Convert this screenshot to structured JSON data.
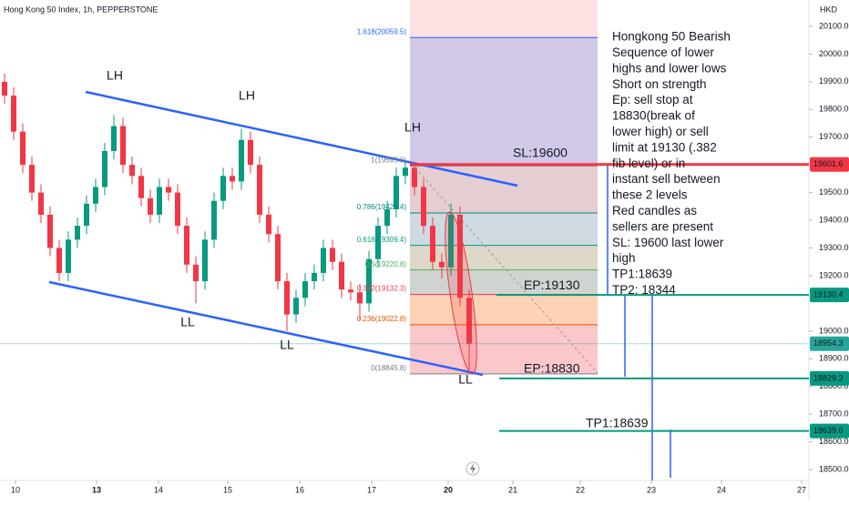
{
  "chart_data": {
    "type": "candlestick",
    "title": "Hong Kong 50 Index, 1h, PEPPERSTONE",
    "currency": "HKD",
    "up_color": "#089981",
    "down_color": "#f23645",
    "x": [
      1.25,
      3.75,
      6.25,
      8.75,
      11.25,
      13.75,
      16.25,
      18.75,
      21.25,
      23.75,
      26.25,
      28.75,
      31.25,
      33.75,
      36.25,
      38.75,
      41.25,
      43.75,
      46.25,
      48.75,
      51.25,
      53.75,
      56.25,
      58.75,
      61.25,
      63.75,
      66.25,
      68.75,
      71.25,
      73.75,
      76.25,
      78.75,
      81.25,
      83.75,
      86.25,
      88.75,
      91.25,
      93.75,
      96.25,
      98.75,
      101.25,
      103.75,
      106.25,
      108.75,
      111.25,
      113.75,
      116.25,
      118.75,
      121.25,
      123.75,
      126.25,
      128.75
    ],
    "open": [
      19900,
      19850,
      19720,
      19600,
      19500,
      19420,
      19300,
      19210,
      19330,
      19380,
      19460,
      19520,
      19650,
      19740,
      19600,
      19560,
      19480,
      19420,
      19520,
      19500,
      19380,
      19240,
      19180,
      19330,
      19470,
      19560,
      19540,
      19690,
      19600,
      19420,
      19350,
      19180,
      19060,
      19120,
      19180,
      19210,
      19300,
      19250,
      19150,
      19140,
      19100,
      19260,
      19380,
      19440,
      19560,
      19590,
      19520,
      19380,
      19250,
      19230,
      19420,
      19120
    ],
    "high": [
      19930,
      19880,
      19750,
      19630,
      19530,
      19450,
      19330,
      19360,
      19410,
      19490,
      19550,
      19680,
      19780,
      19770,
      19630,
      19590,
      19510,
      19550,
      19550,
      19530,
      19410,
      19270,
      19360,
      19500,
      19590,
      19590,
      19730,
      19720,
      19630,
      19450,
      19380,
      19210,
      19150,
      19210,
      19240,
      19330,
      19330,
      19280,
      19180,
      19170,
      19290,
      19410,
      19470,
      19590,
      19610,
      19600,
      19550,
      19410,
      19280,
      19460,
      19450,
      19150
    ],
    "low": [
      19820,
      19690,
      19570,
      19470,
      19390,
      19270,
      19180,
      19180,
      19300,
      19350,
      19430,
      19490,
      19620,
      19570,
      19530,
      19450,
      19390,
      19390,
      19470,
      19350,
      19210,
      19100,
      19150,
      19300,
      19440,
      19510,
      19510,
      19570,
      19390,
      19320,
      19150,
      19000,
      19030,
      19090,
      19150,
      19180,
      19220,
      19120,
      19110,
      19040,
      19070,
      19230,
      19350,
      19410,
      19530,
      19490,
      19350,
      19220,
      19190,
      19200,
      19090,
      18860
    ],
    "close": [
      19850,
      19720,
      19600,
      19500,
      19420,
      19300,
      19210,
      19330,
      19380,
      19460,
      19520,
      19650,
      19740,
      19600,
      19560,
      19480,
      19420,
      19520,
      19500,
      19380,
      19240,
      19180,
      19330,
      19470,
      19560,
      19540,
      19690,
      19600,
      19420,
      19350,
      19180,
      19060,
      19120,
      19180,
      19210,
      19300,
      19250,
      19150,
      19140,
      19100,
      19260,
      19380,
      19440,
      19560,
      19590,
      19520,
      19380,
      19250,
      19230,
      19420,
      19120,
      18954.3
    ],
    "xlim": [
      0,
      222
    ],
    "xticks": [
      {
        "value": 4.25,
        "label": "10"
      },
      {
        "value": 26.5,
        "label": "13"
      },
      {
        "value": 43.5,
        "label": "14"
      },
      {
        "value": 62.5,
        "label": "15"
      },
      {
        "value": 82.25,
        "label": "16"
      },
      {
        "value": 102,
        "label": "17"
      },
      {
        "value": 123,
        "label": "20"
      },
      {
        "value": 140.75,
        "label": "21"
      },
      {
        "value": 159.25,
        "label": "22"
      },
      {
        "value": 178.75,
        "label": "23"
      },
      {
        "value": 198,
        "label": "24"
      },
      {
        "value": 220,
        "label": "27"
      }
    ],
    "ylim": [
      18461,
      20195
    ],
    "yticks": [
      {
        "value": 20100,
        "label": "20100.0"
      },
      {
        "value": 20000,
        "label": "20000.0"
      },
      {
        "value": 19900,
        "label": "19900.0"
      },
      {
        "value": 19800,
        "label": "19800.0"
      },
      {
        "value": 19700,
        "label": "19700.0"
      },
      {
        "value": 19500,
        "label": "19500.0"
      },
      {
        "value": 19400,
        "label": "19400.0"
      },
      {
        "value": 19300,
        "label": "19300.0"
      },
      {
        "value": 19200,
        "label": "19200.0"
      },
      {
        "value": 19000,
        "label": "19000.0"
      },
      {
        "value": 18900,
        "label": "18900.0"
      },
      {
        "value": 18800,
        "label": "18800.0"
      },
      {
        "value": 18700,
        "label": "18700.0"
      },
      {
        "value": 18600,
        "label": "18600.0"
      },
      {
        "value": 18500,
        "label": "18500.0"
      }
    ],
    "fib_levels": [
      {
        "value": 20059.5,
        "label": "1.618(20059.5)",
        "color": "#2962ff"
      },
      {
        "value": 19595.9,
        "label": "1(19595.9)",
        "color": "#787b86"
      },
      {
        "value": 19426.4,
        "label": "0.786(19426.4)",
        "color": "#00897b"
      },
      {
        "value": 19309.4,
        "label": "0.618(19309.4)",
        "color": "#089981"
      },
      {
        "value": 19220.8,
        "label": "0.5(19220.8)",
        "color": "#4caf50"
      },
      {
        "value": 19132.3,
        "label": "0.382(19132.3)",
        "color": "#f23645"
      },
      {
        "value": 19022.8,
        "label": "0.236(19022.8)",
        "color": "#e65100"
      },
      {
        "value": 18845.8,
        "label": "0(18845.8)",
        "color": "#787b86"
      }
    ],
    "fib_band_colors": [
      "rgba(41,98,255,0.2)",
      "rgba(120,123,134,0.18)",
      "rgba(0,188,212,0.18)",
      "rgba(76,175,80,0.18)",
      "rgba(8,153,129,0.18)",
      "rgba(255,152,0,0.2)",
      "rgba(242,54,69,0.15)"
    ],
    "price_lines": [
      {
        "value": 19601.6,
        "label": "19601.6",
        "color": "#f23645",
        "tag": "SL:19600"
      },
      {
        "value": 19130.4,
        "label": "19130.4",
        "color": "#089981",
        "tag": "EP:19130"
      },
      {
        "value": 18954.3,
        "label": "18954.3",
        "color": "#26a69a"
      },
      {
        "value": 18829.2,
        "label": "18829.2",
        "color": "#089981",
        "tag": "EP:18830"
      },
      {
        "value": 18639.6,
        "label": "18639.6",
        "color": "#089981",
        "tag": "TP1:18639"
      }
    ],
    "swing_labels": [
      "LH",
      "LH",
      "LH",
      "LL",
      "LL",
      "LL"
    ],
    "note": [
      "Hongkong 50 Bearish",
      "Sequence of lower",
      "highs and lower lows",
      "Short on strength",
      "Ep: sell stop at",
      "18830(break of",
      "lower high) or sell",
      "limit at 19130 (.382",
      "fib level) or in",
      "instant sell between",
      "these 2 levels",
      "Red candles as",
      "sellers are present",
      "SL: 19600 last lower",
      "high",
      "TP1:18639",
      "TP2: 18344"
    ]
  }
}
